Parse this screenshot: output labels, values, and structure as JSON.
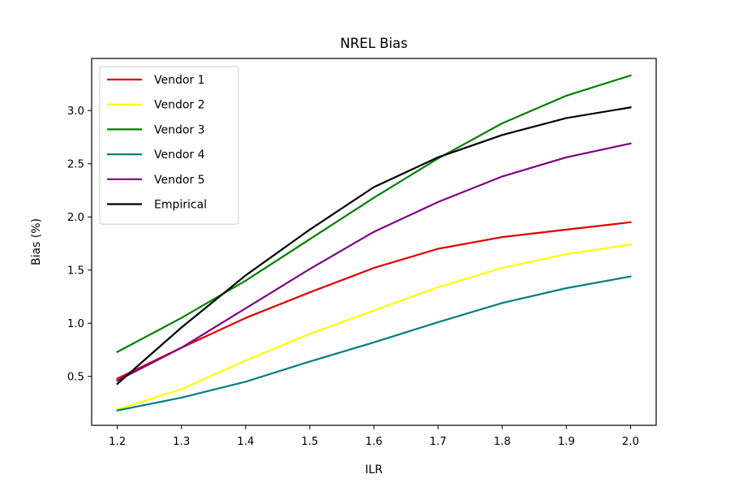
{
  "chart_data": {
    "type": "line",
    "title": "NREL Bias",
    "xlabel": "ILR",
    "ylabel": "Bias (%)",
    "x": [
      1.2,
      1.3,
      1.4,
      1.5,
      1.6,
      1.7,
      1.8,
      1.9,
      2.0
    ],
    "xticks": [
      "1.2",
      "1.3",
      "1.4",
      "1.5",
      "1.6",
      "1.7",
      "1.8",
      "1.9",
      "2.0"
    ],
    "yticks": [
      "0.5",
      "1.0",
      "1.5",
      "2.0",
      "2.5",
      "3.0"
    ],
    "xlim": [
      1.16,
      2.04
    ],
    "ylim": [
      0.04,
      3.49
    ],
    "grid": false,
    "legend_position": "upper-left",
    "series": [
      {
        "name": "Vendor 1",
        "color": "#e00000",
        "values": [
          0.48,
          0.77,
          1.05,
          1.29,
          1.52,
          1.7,
          1.81,
          1.88,
          1.95
        ]
      },
      {
        "name": "Vendor 2",
        "color": "#ffff00",
        "values": [
          0.19,
          0.38,
          0.65,
          0.9,
          1.12,
          1.34,
          1.52,
          1.65,
          1.74
        ]
      },
      {
        "name": "Vendor 3",
        "color": "#007f00",
        "values": [
          0.73,
          1.05,
          1.4,
          1.79,
          2.18,
          2.55,
          2.88,
          3.14,
          3.33
        ]
      },
      {
        "name": "Vendor 4",
        "color": "#007f7f",
        "values": [
          0.18,
          0.3,
          0.45,
          0.64,
          0.82,
          1.01,
          1.19,
          1.33,
          1.44
        ]
      },
      {
        "name": "Vendor 5",
        "color": "#7f007f",
        "values": [
          0.46,
          0.77,
          1.14,
          1.51,
          1.86,
          2.14,
          2.38,
          2.56,
          2.69
        ]
      },
      {
        "name": "Empirical",
        "color": "#000000",
        "values": [
          0.43,
          0.96,
          1.45,
          1.88,
          2.28,
          2.56,
          2.77,
          2.93,
          3.03
        ]
      }
    ]
  }
}
